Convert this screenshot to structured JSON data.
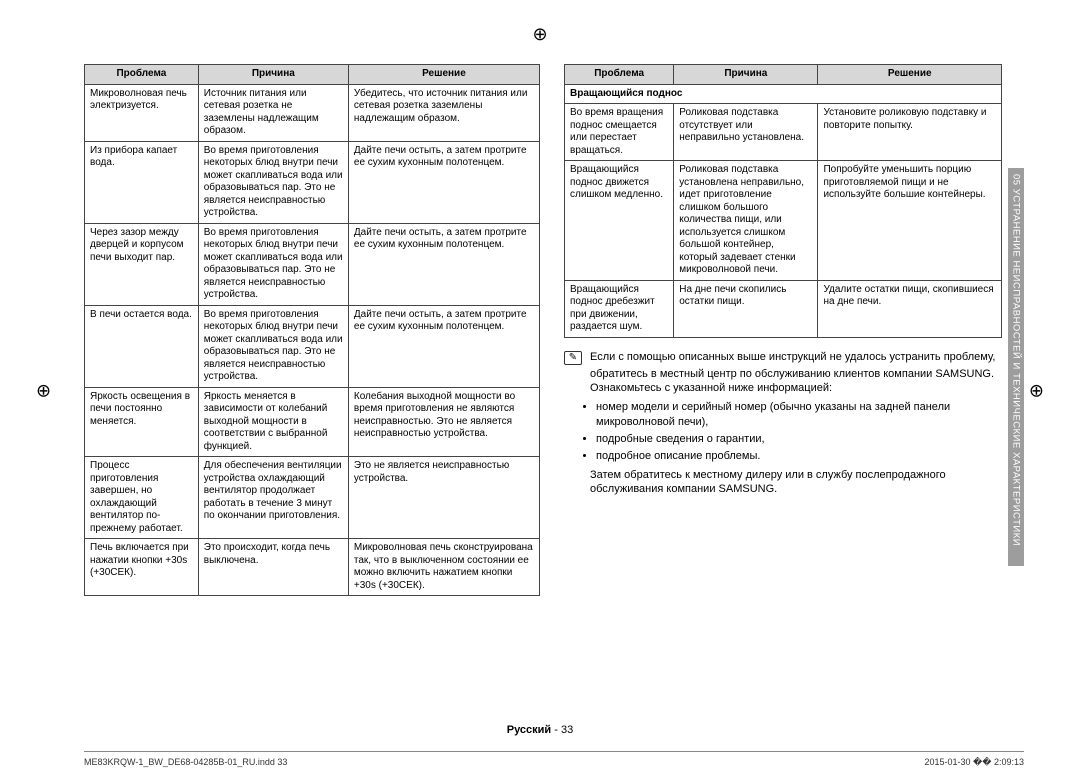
{
  "headers": {
    "problem": "Проблема",
    "cause": "Причина",
    "solution": "Решение"
  },
  "table1": {
    "columns": [
      "Проблема",
      "Причина",
      "Решение"
    ],
    "rows": [
      [
        "Микроволновая печь электризуется.",
        "Источник питания или сетевая розетка не заземлены надлежащим образом.",
        "Убедитесь, что источник питания или сетевая розетка заземлены надлежащим образом."
      ],
      [
        "Из прибора капает вода.",
        "Во время приготовления некоторых блюд внутри печи может скапливаться вода или образовываться пар. Это не является неисправностью устройства.",
        "Дайте печи остыть, а затем протрите ее сухим кухонным полотенцем."
      ],
      [
        "Через зазор между дверцей и корпусом печи выходит пар.",
        "Во время приготовления некоторых блюд внутри печи может скапливаться вода или образовываться пар. Это не является неисправностью устройства.",
        "Дайте печи остыть, а затем протрите ее сухим кухонным полотенцем."
      ],
      [
        "В печи остается вода.",
        "Во время приготовления некоторых блюд внутри печи может скапливаться вода или образовываться пар. Это не является неисправностью устройства.",
        "Дайте печи остыть, а затем протрите ее сухим кухонным полотенцем."
      ],
      [
        "Яркость освещения в печи постоянно меняется.",
        "Яркость меняется в зависимости от колебаний выходной мощности в соответствии с выбранной функцией.",
        "Колебания выходной мощности во время приготовления не являются неисправностью. Это не является неисправностью устройства."
      ],
      [
        "Процесс приготовления завершен, но охлаждающий вентилятор по-прежнему работает.",
        "Для обеспечения вентиляции устройства охлаждающий вентилятор продолжает работать в течение 3 минут по окончании приготовления.",
        "Это не является неисправностью устройства."
      ],
      [
        "Печь включается при нажатии кнопки +30s (+30СЕК).",
        "Это происходит, когда печь выключена.",
        "Микроволновая печь сконструирована так, что в выключенном состоянии ее можно включить нажатием кнопки +30s (+30СЕК)."
      ]
    ]
  },
  "table2": {
    "section": "Вращающийся поднос",
    "rows": [
      [
        "Во время вращения поднос смещается или перестает вращаться.",
        "Роликовая подставка отсутствует или неправильно установлена.",
        "Установите роликовую подставку и повторите попытку."
      ],
      [
        "Вращающийся поднос движется слишком медленно.",
        "Роликовая подставка установлена неправильно, идет приготовление слишком большого количества пищи, или используется слишком большой контейнер, который задевает стенки микроволновой печи.",
        "Попробуйте уменьшить порцию приготовляемой пищи и не используйте большие контейнеры."
      ],
      [
        "Вращающийся поднос дребезжит при движении, раздается шум.",
        "На дне печи скопились остатки пищи.",
        "Удалите остатки пищи, скопившиеся на дне печи."
      ]
    ]
  },
  "notes": {
    "lead1": "Если с помощью описанных выше инструкций не удалось устранить проблему,",
    "lead2": "обратитесь в местный центр по обслуживанию клиентов компании SAMSUNG.",
    "lead3": "Ознакомьтесь с указанной ниже информацией:",
    "bullets": [
      "номер модели и серийный номер (обычно указаны на задней панели микроволновой печи),",
      "подробные сведения о гарантии,",
      "подробное описание проблемы."
    ],
    "tail1": "Затем обратитесь к местному дилеру или в службу послепродажного обслуживания компании SAMSUNG."
  },
  "sideTab": "05  УСТРАНЕНИЕ НЕИСПРАВНОСТЕЙ И ТЕХНИЧЕСКИЕ ХАРАКТЕРИСТИКИ",
  "footer": {
    "lang": "Русский",
    "page": "33",
    "filemeta": "ME83KRQW-1_BW_DE68-04285B-01_RU.indd   33",
    "datetime": "2015-01-30   �� 2:09:13"
  }
}
